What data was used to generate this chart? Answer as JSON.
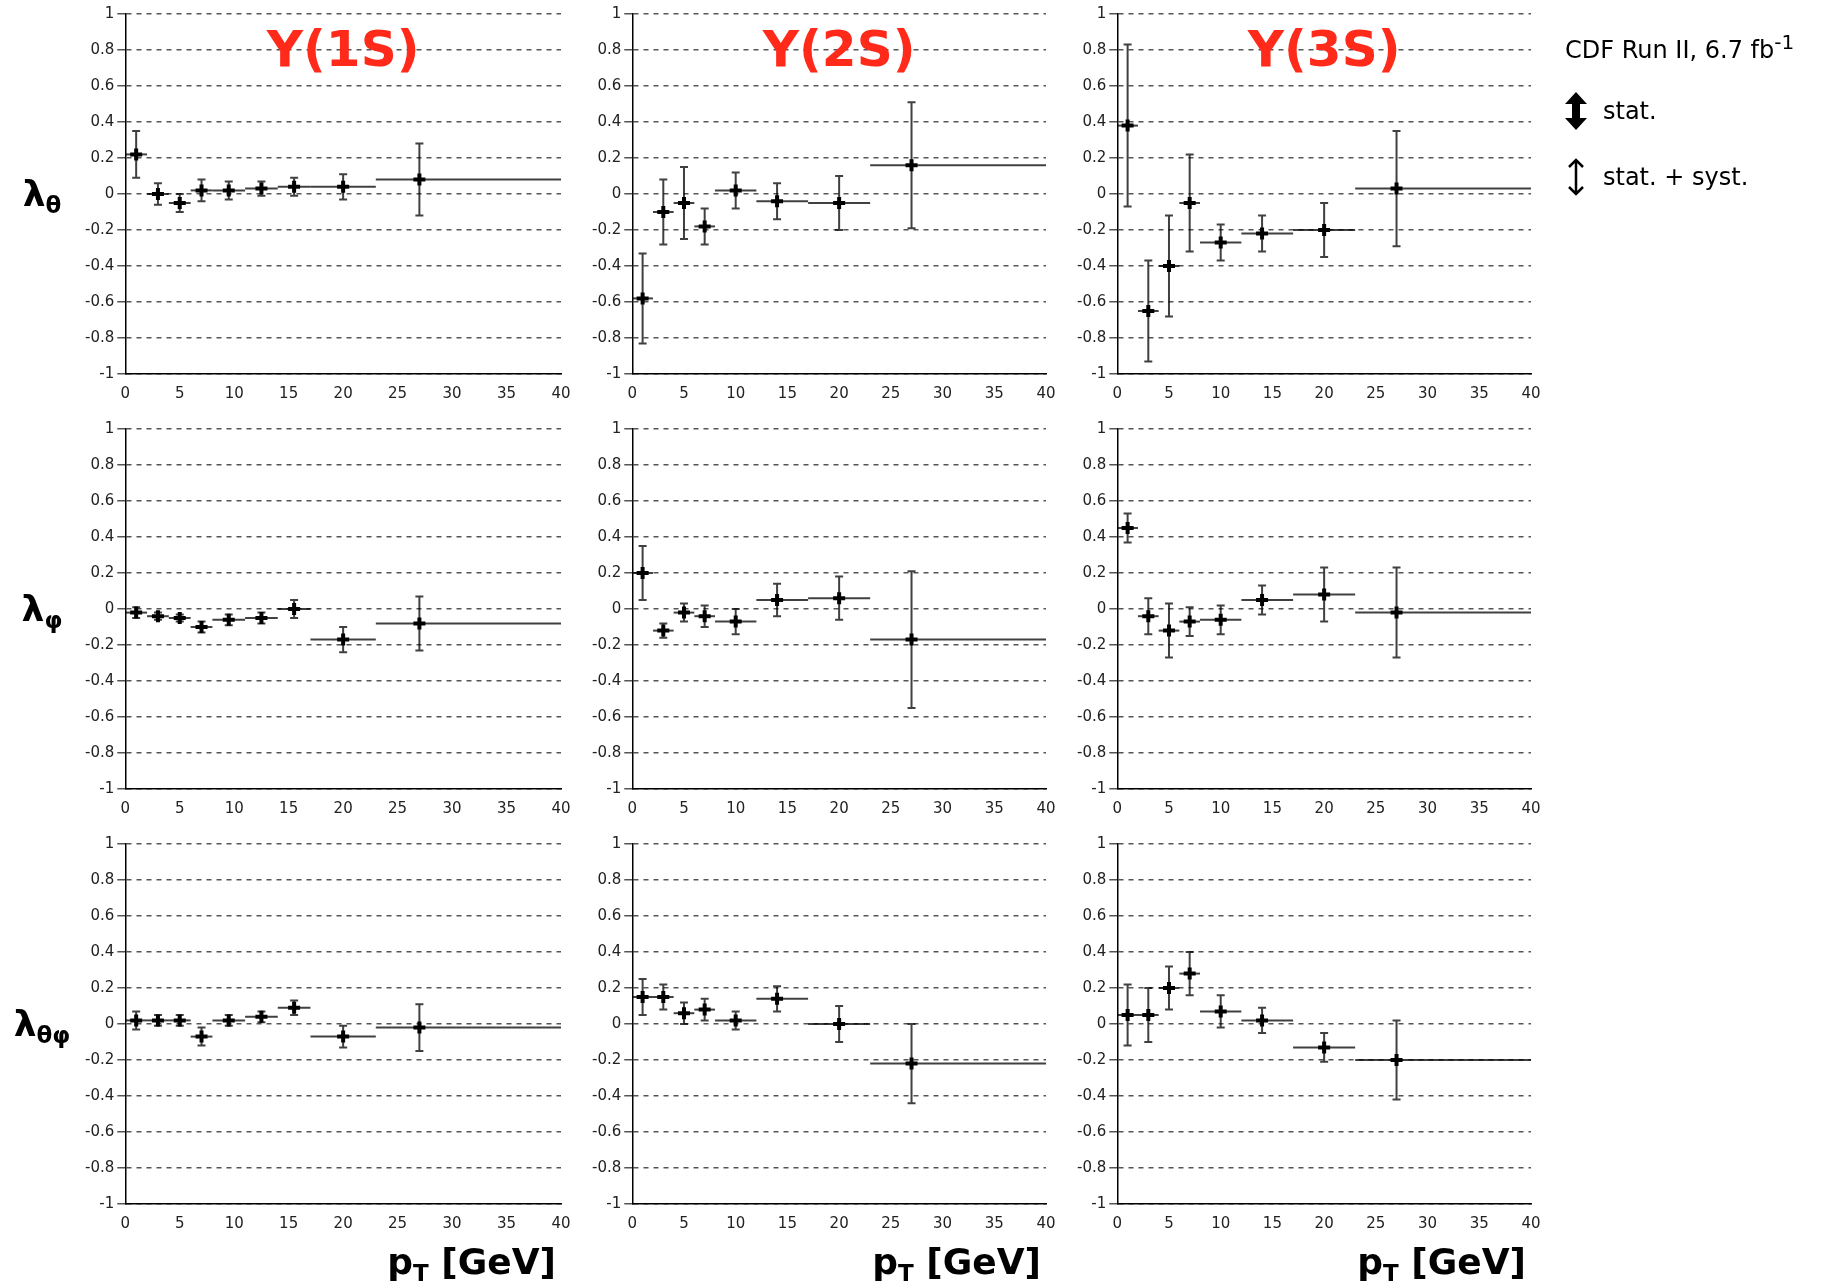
{
  "chart_data": [
    {
      "type": "scatter",
      "title": "Υ(1S)",
      "ylabel": "λ$_{θ}$",
      "x": [
        1,
        3,
        5,
        7,
        9.5,
        12.5,
        15.5,
        20,
        27
      ],
      "xlim": [
        0,
        40
      ],
      "xticks": [
        0,
        5,
        10,
        15,
        20,
        25,
        30,
        35,
        40
      ],
      "ylim": [
        -1,
        1
      ],
      "yticks": [
        -1,
        -0.8,
        -0.6,
        -0.4,
        -0.2,
        0,
        0.2,
        0.4,
        0.6,
        0.8,
        1
      ],
      "grid": "y",
      "marker": "cross",
      "series": [
        {
          "color": "#000000",
          "values": [
            0.22,
            0,
            -0.05,
            0.02,
            0.02,
            0.03,
            0.04,
            0.04,
            0.08
          ],
          "errors": [
            0.13,
            0.06,
            0.05,
            0.06,
            0.05,
            0.04,
            0.05,
            0.07,
            0.2
          ],
          "xerrors": [
            [
              0,
              2
            ],
            [
              2,
              4
            ],
            [
              4,
              6
            ],
            [
              6,
              8
            ],
            [
              8,
              11
            ],
            [
              11,
              14
            ],
            [
              14,
              17
            ],
            [
              17,
              23
            ],
            [
              23,
              40
            ]
          ]
        }
      ]
    },
    {
      "type": "scatter",
      "title": "Υ(2S)",
      "x": [
        1,
        3,
        5,
        7,
        10,
        14,
        20,
        27
      ],
      "xlim": [
        0,
        40
      ],
      "xticks": [
        0,
        5,
        10,
        15,
        20,
        25,
        30,
        35,
        40
      ],
      "ylim": [
        -1,
        1
      ],
      "yticks": [
        -1,
        -0.8,
        -0.6,
        -0.4,
        -0.2,
        0,
        0.2,
        0.4,
        0.6,
        0.8,
        1
      ],
      "grid": "y",
      "marker": "cross",
      "series": [
        {
          "color": "#000000",
          "values": [
            -0.58,
            -0.1,
            -0.05,
            -0.18,
            0.02,
            -0.04,
            -0.05,
            0.16
          ],
          "errors": [
            0.25,
            0.18,
            0.2,
            0.1,
            0.1,
            0.1,
            0.15,
            0.35
          ],
          "xerrors": [
            [
              0,
              2
            ],
            [
              2,
              4
            ],
            [
              4,
              6
            ],
            [
              6,
              8
            ],
            [
              8,
              12
            ],
            [
              12,
              17
            ],
            [
              17,
              23
            ],
            [
              23,
              40
            ]
          ]
        }
      ]
    },
    {
      "type": "scatter",
      "title": "Υ(3S)",
      "x": [
        1,
        3,
        5,
        7,
        10,
        14,
        20,
        27
      ],
      "xlim": [
        0,
        40
      ],
      "xticks": [
        0,
        5,
        10,
        15,
        20,
        25,
        30,
        35,
        40
      ],
      "ylim": [
        -1,
        1
      ],
      "yticks": [
        -1,
        -0.8,
        -0.6,
        -0.4,
        -0.2,
        0,
        0.2,
        0.4,
        0.6,
        0.8,
        1
      ],
      "grid": "y",
      "marker": "cross",
      "series": [
        {
          "color": "#000000",
          "values": [
            0.38,
            -0.65,
            -0.4,
            -0.05,
            -0.27,
            -0.22,
            -0.2,
            0.03
          ],
          "errors": [
            0.45,
            0.28,
            0.28,
            0.27,
            0.1,
            0.1,
            0.15,
            0.32
          ],
          "xerrors": [
            [
              0,
              2
            ],
            [
              2,
              4
            ],
            [
              4,
              6
            ],
            [
              6,
              8
            ],
            [
              8,
              12
            ],
            [
              12,
              17
            ],
            [
              17,
              23
            ],
            [
              23,
              40
            ]
          ]
        }
      ]
    },
    {
      "type": "other",
      "annotations": [
        "CDF Run II, 6.7 fb$^{-1}$",
        "stat.",
        "stat. + syst."
      ]
    },
    {
      "type": "scatter",
      "ylabel": "λ$_{φ}$",
      "x": [
        1,
        3,
        5,
        7,
        9.5,
        12.5,
        15.5,
        20,
        27
      ],
      "xlim": [
        0,
        40
      ],
      "xticks": [
        0,
        5,
        10,
        15,
        20,
        25,
        30,
        35,
        40
      ],
      "ylim": [
        -1,
        1
      ],
      "yticks": [
        -1,
        -0.8,
        -0.6,
        -0.4,
        -0.2,
        0,
        0.2,
        0.4,
        0.6,
        0.8,
        1
      ],
      "grid": "y",
      "marker": "cross",
      "series": [
        {
          "color": "#000000",
          "values": [
            -0.02,
            -0.04,
            -0.05,
            -0.1,
            -0.06,
            -0.05,
            0,
            -0.17,
            -0.08
          ],
          "errors": [
            0.03,
            0.02,
            0.02,
            0.03,
            0.03,
            0.03,
            0.05,
            0.07,
            0.15
          ],
          "xerrors": [
            [
              0,
              2
            ],
            [
              2,
              4
            ],
            [
              4,
              6
            ],
            [
              6,
              8
            ],
            [
              8,
              11
            ],
            [
              11,
              14
            ],
            [
              14,
              17
            ],
            [
              17,
              23
            ],
            [
              23,
              40
            ]
          ]
        }
      ]
    },
    {
      "type": "scatter",
      "x": [
        1,
        3,
        5,
        7,
        10,
        14,
        20,
        27
      ],
      "xlim": [
        0,
        40
      ],
      "xticks": [
        0,
        5,
        10,
        15,
        20,
        25,
        30,
        35,
        40
      ],
      "ylim": [
        -1,
        1
      ],
      "yticks": [
        -1,
        -0.8,
        -0.6,
        -0.4,
        -0.2,
        0,
        0.2,
        0.4,
        0.6,
        0.8,
        1
      ],
      "grid": "y",
      "marker": "cross",
      "series": [
        {
          "color": "#000000",
          "values": [
            0.2,
            -0.12,
            -0.02,
            -0.04,
            -0.07,
            0.05,
            0.06,
            -0.17
          ],
          "errors": [
            0.15,
            0.04,
            0.05,
            0.06,
            0.07,
            0.09,
            0.12,
            0.38
          ],
          "xerrors": [
            [
              0,
              2
            ],
            [
              2,
              4
            ],
            [
              4,
              6
            ],
            [
              6,
              8
            ],
            [
              8,
              12
            ],
            [
              12,
              17
            ],
            [
              17,
              23
            ],
            [
              23,
              40
            ]
          ]
        }
      ]
    },
    {
      "type": "scatter",
      "x": [
        1,
        3,
        5,
        7,
        10,
        14,
        20,
        27
      ],
      "xlim": [
        0,
        40
      ],
      "xticks": [
        0,
        5,
        10,
        15,
        20,
        25,
        30,
        35,
        40
      ],
      "ylim": [
        -1,
        1
      ],
      "yticks": [
        -1,
        -0.8,
        -0.6,
        -0.4,
        -0.2,
        0,
        0.2,
        0.4,
        0.6,
        0.8,
        1
      ],
      "grid": "y",
      "marker": "cross",
      "series": [
        {
          "color": "#000000",
          "values": [
            0.45,
            -0.04,
            -0.12,
            -0.07,
            -0.06,
            0.05,
            0.08,
            -0.02
          ],
          "errors": [
            0.08,
            0.1,
            0.15,
            0.08,
            0.08,
            0.08,
            0.15,
            0.25
          ],
          "xerrors": [
            [
              0,
              2
            ],
            [
              2,
              4
            ],
            [
              4,
              6
            ],
            [
              6,
              8
            ],
            [
              8,
              12
            ],
            [
              12,
              17
            ],
            [
              17,
              23
            ],
            [
              23,
              40
            ]
          ]
        }
      ]
    },
    {
      "type": "scatter",
      "ylabel": "λ$_{θφ}$",
      "xlabel": "p$_{T}$ [GeV]",
      "x": [
        1,
        3,
        5,
        7,
        9.5,
        12.5,
        15.5,
        20,
        27
      ],
      "xlim": [
        0,
        40
      ],
      "xticks": [
        0,
        5,
        10,
        15,
        20,
        25,
        30,
        35,
        40
      ],
      "ylim": [
        -1,
        1
      ],
      "yticks": [
        -1,
        -0.8,
        -0.6,
        -0.4,
        -0.2,
        0,
        0.2,
        0.4,
        0.6,
        0.8,
        1
      ],
      "grid": "y",
      "marker": "cross",
      "series": [
        {
          "color": "#000000",
          "values": [
            0.02,
            0.02,
            0.02,
            -0.07,
            0.02,
            0.04,
            0.09,
            -0.07,
            -0.02
          ],
          "errors": [
            0.05,
            0.03,
            0.03,
            0.05,
            0.03,
            0.03,
            0.04,
            0.06,
            0.13
          ],
          "xerrors": [
            [
              0,
              2
            ],
            [
              2,
              4
            ],
            [
              4,
              6
            ],
            [
              6,
              8
            ],
            [
              8,
              11
            ],
            [
              11,
              14
            ],
            [
              14,
              17
            ],
            [
              17,
              23
            ],
            [
              23,
              40
            ]
          ]
        }
      ]
    },
    {
      "type": "scatter",
      "xlabel": "p$_{T}$ [GeV]",
      "x": [
        1,
        3,
        5,
        7,
        10,
        14,
        20,
        27
      ],
      "xlim": [
        0,
        40
      ],
      "xticks": [
        0,
        5,
        10,
        15,
        20,
        25,
        30,
        35,
        40
      ],
      "ylim": [
        -1,
        1
      ],
      "yticks": [
        -1,
        -0.8,
        -0.6,
        -0.4,
        -0.2,
        0,
        0.2,
        0.4,
        0.6,
        0.8,
        1
      ],
      "grid": "y",
      "marker": "cross",
      "series": [
        {
          "color": "#000000",
          "values": [
            0.15,
            0.15,
            0.06,
            0.08,
            0.02,
            0.14,
            0,
            -0.22
          ],
          "errors": [
            0.1,
            0.07,
            0.06,
            0.06,
            0.05,
            0.07,
            0.1,
            0.22
          ],
          "xerrors": [
            [
              0,
              2
            ],
            [
              2,
              4
            ],
            [
              4,
              6
            ],
            [
              6,
              8
            ],
            [
              8,
              12
            ],
            [
              12,
              17
            ],
            [
              17,
              23
            ],
            [
              23,
              40
            ]
          ]
        }
      ]
    },
    {
      "type": "scatter",
      "xlabel": "p$_{T}$ [GeV]",
      "x": [
        1,
        3,
        5,
        7,
        10,
        14,
        20,
        27
      ],
      "xlim": [
        0,
        40
      ],
      "xticks": [
        0,
        5,
        10,
        15,
        20,
        25,
        30,
        35,
        40
      ],
      "ylim": [
        -1,
        1
      ],
      "yticks": [
        -1,
        -0.8,
        -0.6,
        -0.4,
        -0.2,
        0,
        0.2,
        0.4,
        0.6,
        0.8,
        1
      ],
      "grid": "y",
      "marker": "cross",
      "series": [
        {
          "color": "#000000",
          "values": [
            0.05,
            0.05,
            0.2,
            0.28,
            0.07,
            0.02,
            -0.13,
            -0.2
          ],
          "errors": [
            0.17,
            0.15,
            0.12,
            0.12,
            0.09,
            0.07,
            0.08,
            0.22
          ],
          "xerrors": [
            [
              0,
              2
            ],
            [
              2,
              4
            ],
            [
              4,
              6
            ],
            [
              6,
              8
            ],
            [
              8,
              12
            ],
            [
              12,
              17
            ],
            [
              17,
              23
            ],
            [
              23,
              40
            ]
          ]
        }
      ]
    }
  ]
}
